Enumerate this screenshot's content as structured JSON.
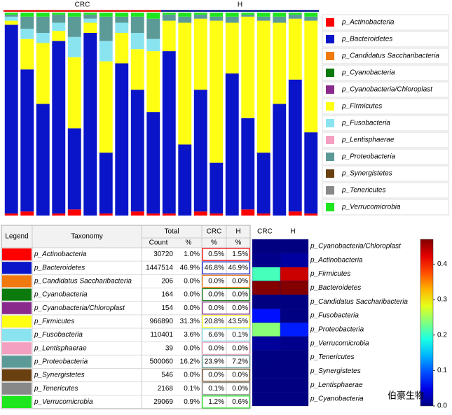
{
  "chart_data": [
    {
      "type": "stacked_bar",
      "categories": [
        null,
        null,
        null,
        null,
        null,
        null,
        null,
        null,
        null,
        null,
        null,
        null,
        null,
        null,
        null,
        null,
        null,
        null,
        null,
        null
      ],
      "groups": [
        {
          "name": "CRC",
          "color": "#e8332e",
          "start": 0,
          "end": 9
        },
        {
          "name": "H",
          "color": "#2a3a9c",
          "start": 10,
          "end": 19
        }
      ],
      "ylim": [
        0,
        1
      ],
      "series": [
        {
          "name": "p_Actinobacteria",
          "color": "#ff0000",
          "values": [
            0.01,
            0.02,
            0,
            0.01,
            0.03,
            0,
            0.01,
            0,
            0.02,
            0.01,
            0.01,
            0,
            0.02,
            0.01,
            0,
            0.03,
            0.01,
            0,
            0.02,
            0.01
          ]
        },
        {
          "name": "p_Bacteroidetes",
          "color": "#0a14c8",
          "values": [
            0.93,
            0.7,
            0.55,
            0.85,
            0.4,
            0.9,
            0.3,
            0.75,
            0.6,
            0.5,
            0.8,
            0.35,
            0.6,
            0.25,
            0.7,
            0.45,
            0.3,
            0.55,
            0.65,
            0.4
          ]
        },
        {
          "name": "p_Candidatus Saccharibacteria",
          "color": "#f07a10",
          "values": [
            0,
            0,
            0,
            0,
            0,
            0,
            0,
            0,
            0,
            0,
            0,
            0,
            0,
            0,
            0,
            0,
            0,
            0,
            0,
            0
          ]
        },
        {
          "name": "p_Cyanobacteria",
          "color": "#0c7a0c",
          "values": [
            0,
            0,
            0,
            0,
            0,
            0,
            0,
            0,
            0,
            0,
            0,
            0,
            0,
            0,
            0,
            0,
            0,
            0,
            0,
            0
          ]
        },
        {
          "name": "p_Cyanobacteria/Chloroplast",
          "color": "#8a2a8c",
          "values": [
            0,
            0,
            0,
            0,
            0,
            0,
            0,
            0,
            0,
            0,
            0,
            0,
            0,
            0,
            0,
            0,
            0,
            0,
            0,
            0
          ]
        },
        {
          "name": "p_Firmicutes",
          "color": "#ffff14",
          "values": [
            0.02,
            0.15,
            0.3,
            0.05,
            0.35,
            0.05,
            0.45,
            0.15,
            0.2,
            0.3,
            0.15,
            0.6,
            0.35,
            0.7,
            0.25,
            0.5,
            0.65,
            0.4,
            0.3,
            0.55
          ]
        },
        {
          "name": "p_Fusobacteria",
          "color": "#8ae4f0",
          "values": [
            0.02,
            0.05,
            0.05,
            0.04,
            0.1,
            0.02,
            0.1,
            0.05,
            0.08,
            0.06,
            0,
            0,
            0,
            0,
            0,
            0,
            0,
            0,
            0,
            0
          ]
        },
        {
          "name": "p_Lentisphaerae",
          "color": "#f4a0c0",
          "values": [
            0,
            0,
            0,
            0,
            0,
            0,
            0,
            0,
            0,
            0,
            0,
            0,
            0,
            0,
            0,
            0,
            0,
            0,
            0,
            0
          ]
        },
        {
          "name": "p_Proteobacteria",
          "color": "#5c9a98",
          "values": [
            0.01,
            0.06,
            0.08,
            0.04,
            0.1,
            0.02,
            0.12,
            0.03,
            0.08,
            0.1,
            0.03,
            0.03,
            0.02,
            0.02,
            0.03,
            0.01,
            0.02,
            0.03,
            0.02,
            0.02
          ]
        },
        {
          "name": "p_Synergistetes",
          "color": "#6a4010",
          "values": [
            0,
            0,
            0,
            0,
            0,
            0,
            0,
            0,
            0,
            0,
            0,
            0,
            0,
            0,
            0,
            0,
            0,
            0,
            0,
            0
          ]
        },
        {
          "name": "p_Tenericutes",
          "color": "#888888",
          "values": [
            0,
            0,
            0,
            0,
            0,
            0,
            0,
            0,
            0,
            0,
            0,
            0,
            0,
            0,
            0,
            0,
            0,
            0,
            0,
            0
          ]
        },
        {
          "name": "p_Verrucomicrobia",
          "color": "#1ee61e",
          "values": [
            0.01,
            0.02,
            0.02,
            0.01,
            0.02,
            0.01,
            0.02,
            0.02,
            0.02,
            0.03,
            0.01,
            0.02,
            0.01,
            0.02,
            0.02,
            0.01,
            0.02,
            0.02,
            0.01,
            0.02
          ]
        }
      ]
    },
    {
      "type": "heatmap",
      "columns": [
        "CRC",
        "H"
      ],
      "rows": [
        "p_Cyanobacteria/Chloroplast",
        "p_Actinobacteria",
        "p_Firmicutes",
        "p_Bacteroidetes",
        "p_Candidatus Saccharibacteria",
        "p_Fusobacteria",
        "p_Proteobacteria",
        "p_Verrucomicrobia",
        "p_Tenericutes",
        "p_Synergistetes",
        "p_Lentisphaerae",
        "p_Cyanobacteria"
      ],
      "values": [
        [
          0,
          0
        ],
        [
          0.005,
          0.015
        ],
        [
          0.208,
          0.435
        ],
        [
          0.468,
          0.469
        ],
        [
          0,
          0
        ],
        [
          0.066,
          0.001
        ],
        [
          0.239,
          0.072
        ],
        [
          0.012,
          0.006
        ],
        [
          0.001,
          0
        ],
        [
          0,
          0
        ],
        [
          0,
          0
        ],
        [
          0,
          0
        ]
      ],
      "colormap": "jet",
      "zlim": [
        0,
        0.47
      ],
      "zticks": [
        {
          "value": 0,
          "label": "0.0"
        },
        0.1,
        0.2,
        0.3,
        0.4
      ]
    }
  ],
  "table": {
    "header": [
      "Legend",
      "Taxonomy",
      "Total",
      "CRC",
      "H"
    ],
    "subheader": [
      "Count",
      "%",
      "%",
      "%"
    ],
    "rows": [
      [
        "p_Actinobacteria",
        "30720",
        "1.0%",
        "0.5%",
        "1.5%"
      ],
      [
        "p_Bacteroidetes",
        "1447514",
        "46.9%",
        "46.8%",
        "46.9%"
      ],
      [
        "p_Candidatus Saccharibacteria",
        "206",
        "0.0%",
        "0.0%",
        "0.0%"
      ],
      [
        "p_Cyanobacteria",
        "164",
        "0.0%",
        "0.0%",
        "0.0%"
      ],
      [
        "p_Cyanobacteria/Chloroplast",
        "154",
        "0.0%",
        "0.0%",
        "0.0%"
      ],
      [
        "p_Firmicutes",
        "966890",
        "31.3%",
        "20.8%",
        "43.5%"
      ],
      [
        "p_Fusobacteria",
        "110401",
        "3.6%",
        "6.6%",
        "0.1%"
      ],
      [
        "p_Lentisphaerae",
        "39",
        "0.0%",
        "0.0%",
        "0.0%"
      ],
      [
        "p_Proteobacteria",
        "500060",
        "16.2%",
        "23.9%",
        "7.2%"
      ],
      [
        "p_Synergistetes",
        "546",
        "0.0%",
        "0.0%",
        "0.0%"
      ],
      [
        "p_Tenericutes",
        "2168",
        "0.1%",
        "0.1%",
        "0.0%"
      ],
      [
        "p_Verrucomicrobia",
        "29069",
        "0.9%",
        "1.2%",
        "0.6%"
      ]
    ]
  },
  "watermark": "伯豪生物"
}
